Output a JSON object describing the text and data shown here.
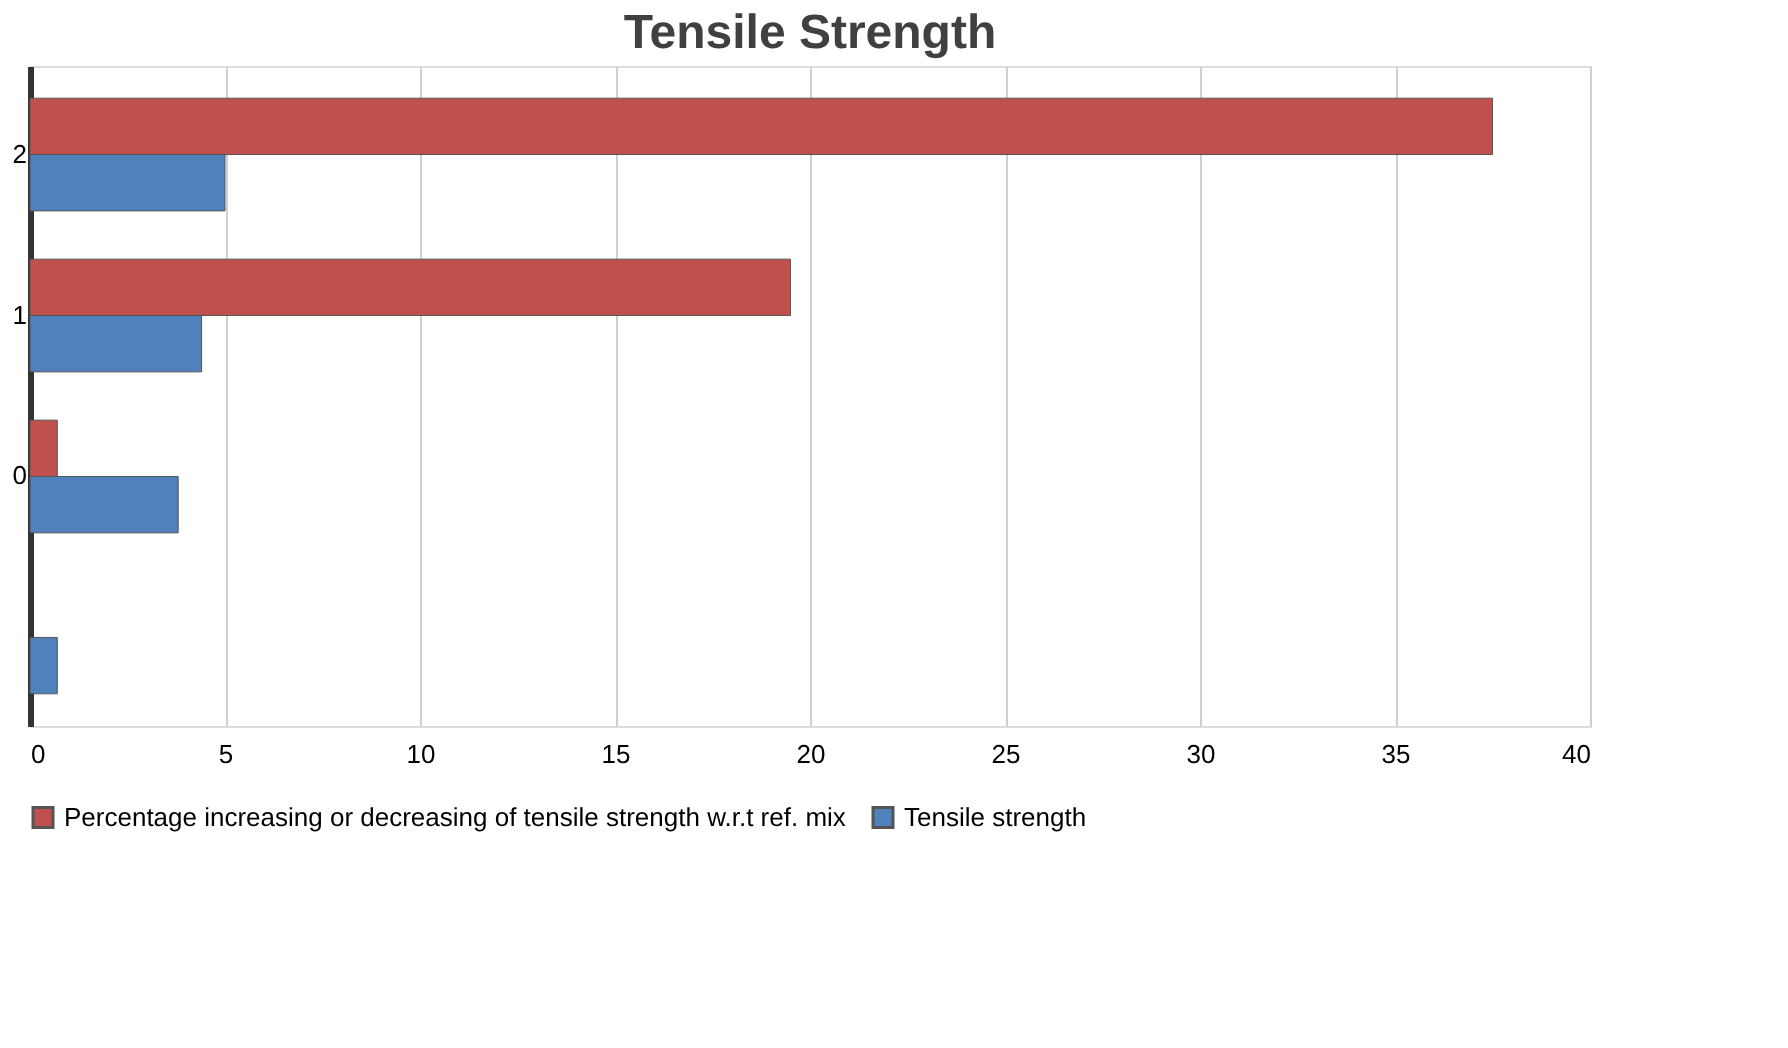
{
  "chart_data": {
    "type": "bar",
    "orientation": "horizontal",
    "title": "Tensile Strength",
    "categories": [
      "2",
      "1",
      "0",
      null
    ],
    "series": [
      {
        "name": "Percentage increasing or decreasing of tensile strength w.r.t ref. mix",
        "color": "#c0504d",
        "values": [
          37.5,
          19.5,
          0.7,
          null
        ]
      },
      {
        "name": "Tensile strength",
        "color": "#4f81bd",
        "values": [
          5.0,
          4.4,
          3.8,
          0.7
        ]
      }
    ],
    "xlim": [
      0,
      40
    ],
    "xticks": [
      0,
      5,
      10,
      15,
      20,
      25,
      30,
      35,
      40
    ],
    "grid": "x",
    "legend": "bottom"
  }
}
